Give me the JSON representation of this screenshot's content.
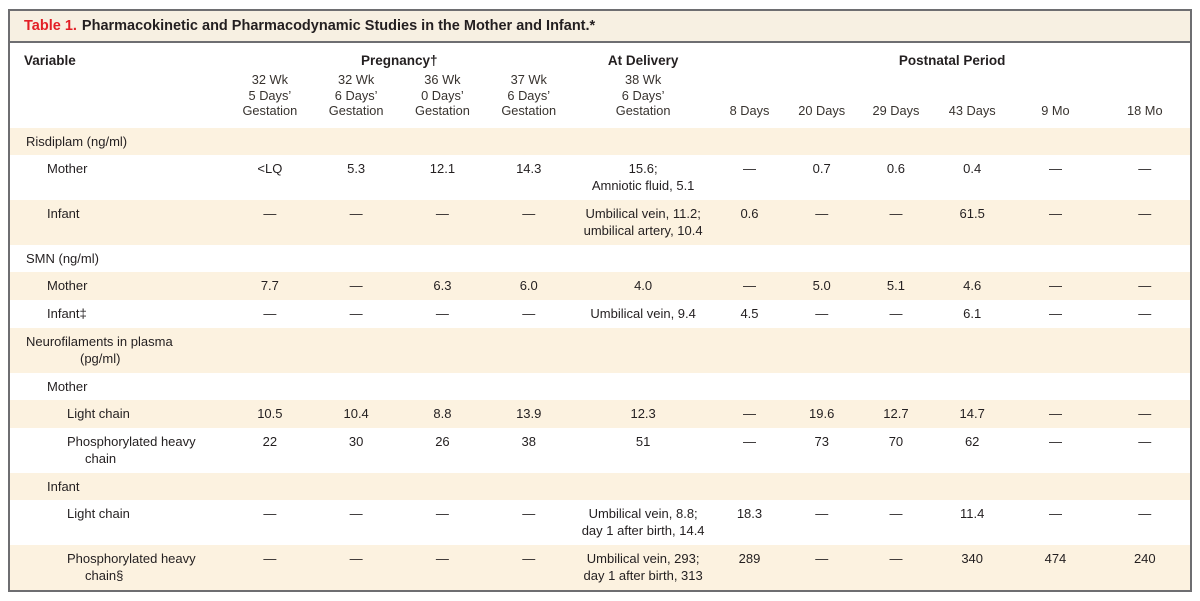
{
  "title": {
    "table_label": "Table 1.",
    "table_caption": "Pharmacokinetic and Pharmacodynamic Studies in the Mother and Infant.*"
  },
  "header": {
    "variable": "Variable",
    "groups": [
      {
        "label": "Pregnancy†",
        "span": 4
      },
      {
        "label": "At Delivery",
        "span": 1
      },
      {
        "label": "Postnatal Period",
        "span": 6
      }
    ],
    "subcolumns": [
      "32 Wk\n5 Days’\nGestation",
      "32 Wk\n6 Days’\nGestation",
      "36 Wk\n0 Days’\nGestation",
      "37 Wk\n6 Days’\nGestation",
      "38 Wk\n6 Days’\nGestation",
      "8 Days",
      "20 Days",
      "29 Days",
      "43 Days",
      "9 Mo",
      "18 Mo"
    ]
  },
  "rows": [
    {
      "label": "Risdiplam (ng/ml)",
      "indent": 0,
      "section": true,
      "values": [
        "",
        "",
        "",
        "",
        "",
        "",
        "",
        "",
        "",
        "",
        ""
      ]
    },
    {
      "label": "Mother",
      "indent": 1,
      "section": false,
      "values": [
        "<LQ",
        "5.3",
        "12.1",
        "14.3",
        "15.6;\nAmniotic fluid, 5.1",
        "—",
        "0.7",
        "0.6",
        "0.4",
        "—",
        "—"
      ]
    },
    {
      "label": "Infant",
      "indent": 1,
      "section": false,
      "values": [
        "—",
        "—",
        "—",
        "—",
        "Umbilical vein, 11.2;\numbilical artery, 10.4",
        "0.6",
        "—",
        "—",
        "61.5",
        "—",
        "—"
      ]
    },
    {
      "label": "SMN (ng/ml)",
      "indent": 0,
      "section": true,
      "values": [
        "",
        "",
        "",
        "",
        "",
        "",
        "",
        "",
        "",
        "",
        ""
      ]
    },
    {
      "label": "Mother",
      "indent": 1,
      "section": false,
      "values": [
        "7.7",
        "—",
        "6.3",
        "6.0",
        "4.0",
        "—",
        "5.0",
        "5.1",
        "4.6",
        "—",
        "—"
      ]
    },
    {
      "label": "Infant‡",
      "indent": 1,
      "section": false,
      "values": [
        "—",
        "—",
        "—",
        "—",
        "Umbilical vein, 9.4",
        "4.5",
        "—",
        "—",
        "6.1",
        "—",
        "—"
      ]
    },
    {
      "label": "Neurofilaments in plasma\n(pg/ml)",
      "indent": 0,
      "section": true,
      "values": [
        "",
        "",
        "",
        "",
        "",
        "",
        "",
        "",
        "",
        "",
        ""
      ]
    },
    {
      "label": "Mother",
      "indent": 1,
      "section": false,
      "values": [
        "",
        "",
        "",
        "",
        "",
        "",
        "",
        "",
        "",
        "",
        ""
      ]
    },
    {
      "label": "Light chain",
      "indent": 2,
      "section": false,
      "values": [
        "10.5",
        "10.4",
        "8.8",
        "13.9",
        "12.3",
        "—",
        "19.6",
        "12.7",
        "14.7",
        "—",
        "—"
      ]
    },
    {
      "label": "Phosphorylated heavy\nchain",
      "indent": 2,
      "section": false,
      "values": [
        "22",
        "30",
        "26",
        "38",
        "51",
        "—",
        "73",
        "70",
        "62",
        "—",
        "—"
      ]
    },
    {
      "label": "Infant",
      "indent": 1,
      "section": false,
      "values": [
        "",
        "",
        "",
        "",
        "",
        "",
        "",
        "",
        "",
        "",
        ""
      ]
    },
    {
      "label": "Light chain",
      "indent": 2,
      "section": false,
      "values": [
        "—",
        "—",
        "—",
        "—",
        "Umbilical vein, 8.8;\nday 1 after birth, 14.4",
        "18.3",
        "—",
        "—",
        "11.4",
        "—",
        "—"
      ]
    },
    {
      "label": "Phosphorylated heavy\nchain§",
      "indent": 2,
      "section": false,
      "values": [
        "—",
        "—",
        "—",
        "—",
        "Umbilical vein, 293;\nday 1 after birth, 313",
        "289",
        "—",
        "—",
        "340",
        "474",
        "240"
      ]
    }
  ],
  "colors": {
    "accent_red": "#e31f26",
    "row_stripe": "#fcf2e0",
    "title_bar_bg": "#f7f0e2",
    "frame_border": "#6e6e71",
    "text": "#231f20"
  }
}
